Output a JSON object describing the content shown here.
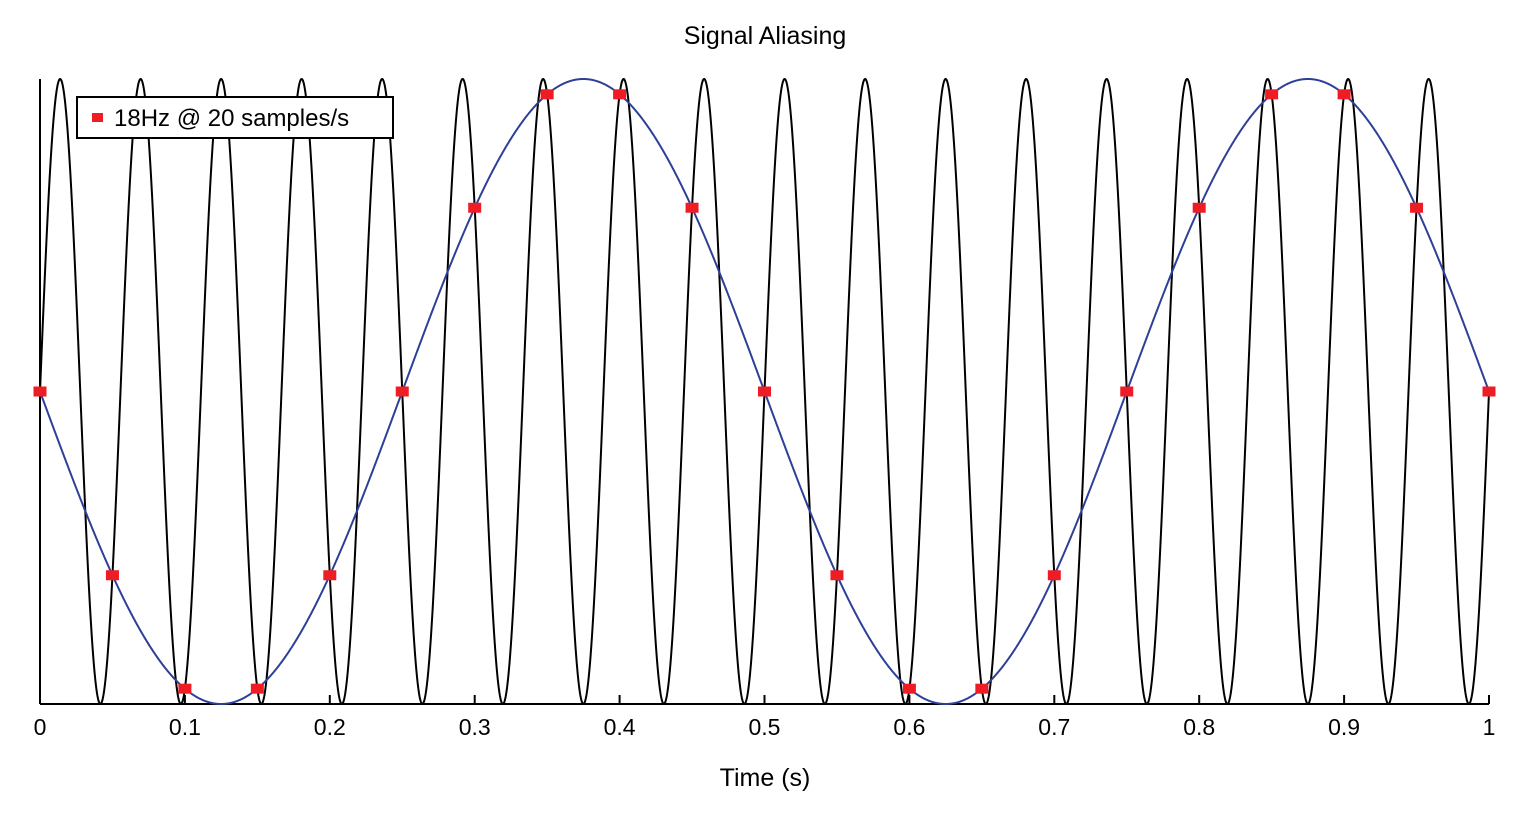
{
  "chart_data": {
    "type": "line",
    "title": "Signal Aliasing",
    "xlabel": "Time (s)",
    "ylabel": "",
    "xlim": [
      0,
      1
    ],
    "ylim": [
      -1,
      1
    ],
    "xticks": [
      "0",
      "0.1",
      "0.2",
      "0.3",
      "0.4",
      "0.5",
      "0.6",
      "0.7",
      "0.8",
      "0.9",
      "1"
    ],
    "grid": false,
    "legend": {
      "placement": "top-left",
      "entries": [
        "18Hz @ 20 samples/s"
      ]
    },
    "series": [
      {
        "kind": "continuous",
        "frequency_hz": 18,
        "amplitude": 1,
        "function": "sin",
        "color": "#000000"
      },
      {
        "kind": "continuous",
        "frequency_hz": 2,
        "amplitude": 1,
        "function": "-sin",
        "color": "#2e3f97"
      },
      {
        "name": "18Hz @ 20 samples/s",
        "kind": "samples",
        "color": "#ee1c24",
        "x": [
          0,
          0.05,
          0.1,
          0.15,
          0.2,
          0.25,
          0.3,
          0.35,
          0.4,
          0.45,
          0.5,
          0.55,
          0.6,
          0.65,
          0.7,
          0.75,
          0.8,
          0.85,
          0.9,
          0.95,
          1
        ],
        "y": [
          0,
          -0.588,
          -0.951,
          -0.951,
          -0.588,
          0,
          0.588,
          0.951,
          0.951,
          0.588,
          0,
          -0.588,
          -0.951,
          -0.951,
          -0.588,
          0,
          0.588,
          0.951,
          0.951,
          0.588,
          0
        ]
      }
    ]
  }
}
